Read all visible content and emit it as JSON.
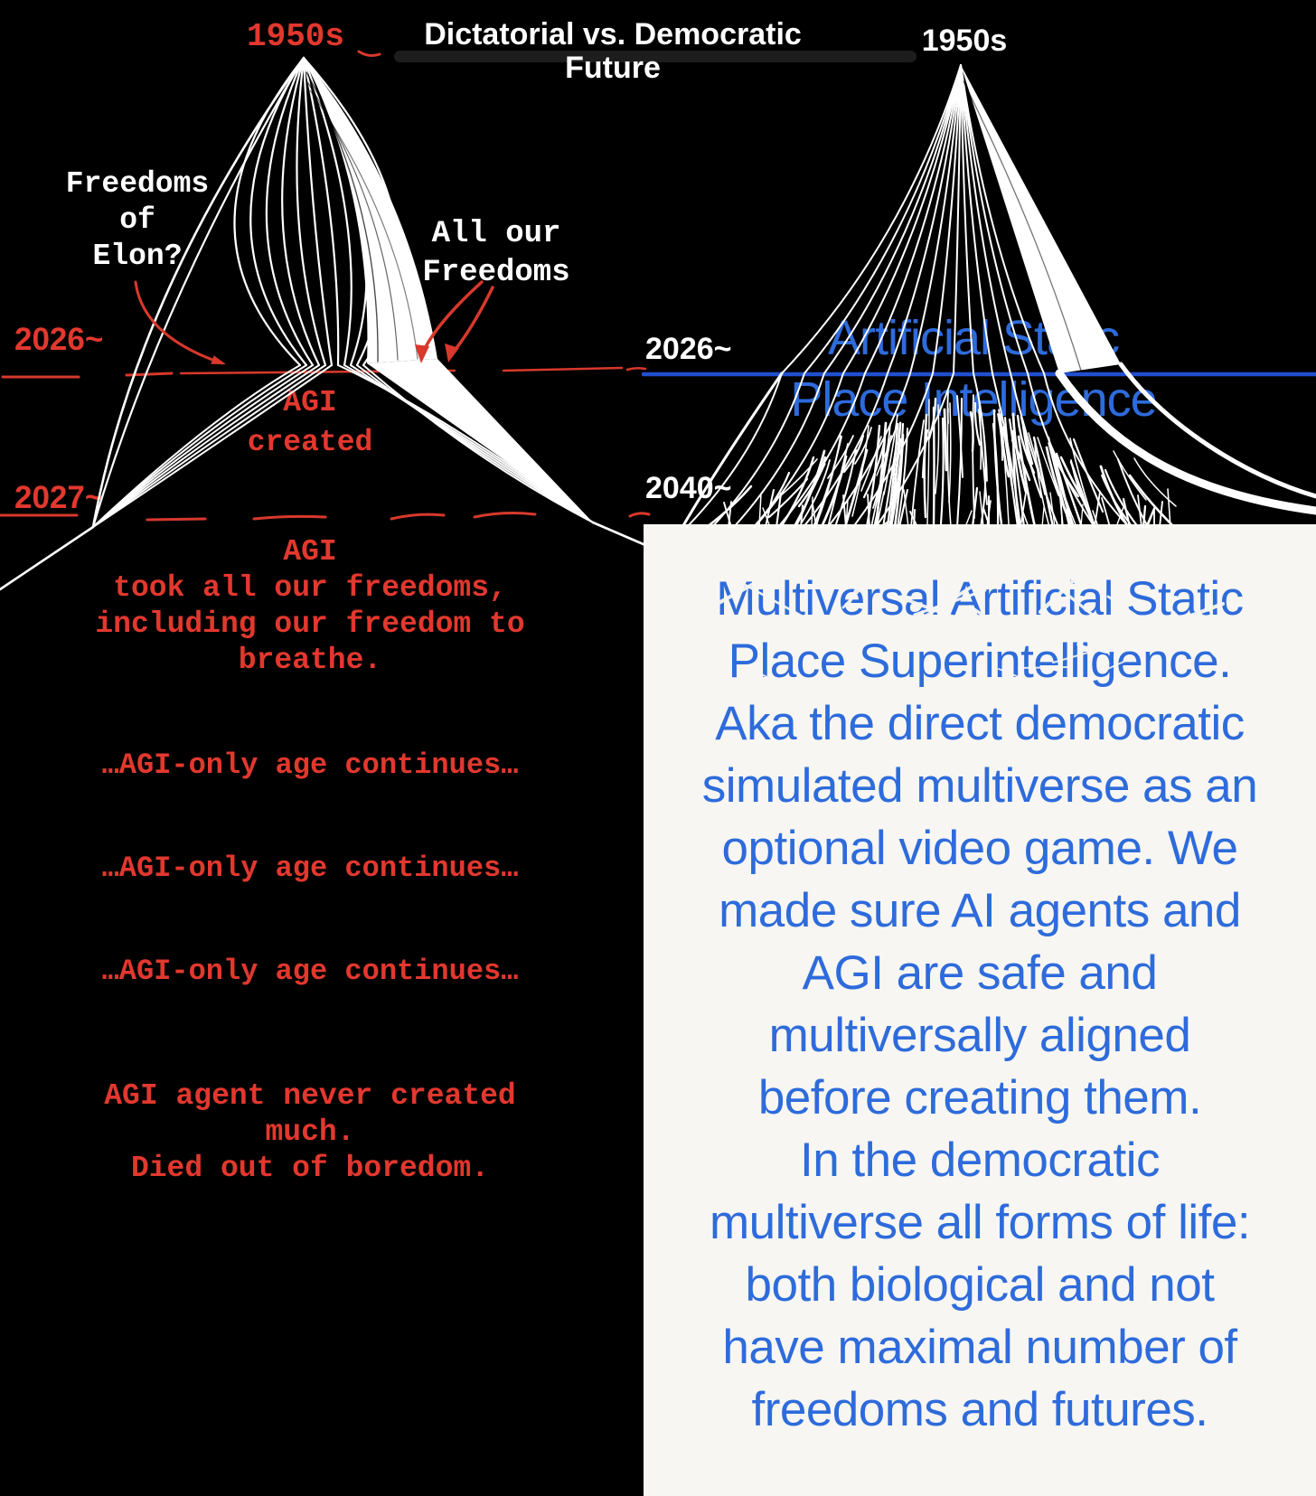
{
  "colors": {
    "red": "#e2382e",
    "red_line": "#d8392c",
    "white": "#ffffff",
    "blue_text": "#2e6bdb",
    "blue_line": "#2150cf",
    "panel_bg": "#f7f6f2",
    "background": "#000000"
  },
  "header": {
    "title": "Dictatorial vs. Democratic\nFuture"
  },
  "left_diagram": {
    "start_year": "1950s",
    "label_elon": "Freedoms\nof\nElon?",
    "label_freedoms": "All our\nFreedoms",
    "year_2026": "2026~",
    "agi_created": "AGI\ncreated",
    "year_2027": "2027~",
    "agi_took_freedoms": "AGI\ntook all our freedoms,\nincluding our freedom to\nbreathe.",
    "age_continues_1": "…AGI-only age continues…",
    "age_continues_2": "…AGI-only age continues…",
    "age_continues_3": "…AGI-only age continues…",
    "agent_died": "AGI agent never created\nmuch.\nDied out of boredom."
  },
  "right_diagram": {
    "start_year": "1950s",
    "year_2026": "2026~",
    "aspi_label": "Artificial Static\nPlace Intelligence",
    "year_2040": "2040~",
    "panel_text": "Multiversal Artificial Static\nPlace Superintelligence.\nAka the direct democratic\nsimulated multiverse as an\noptional video game. We\nmade sure AI agents and\nAGI are safe and\nmultiversally aligned\nbefore creating them.\nIn the democratic\nmultiverse all forms of life:\nboth biological and not\nhave maximal number of\nfreedoms and futures."
  }
}
